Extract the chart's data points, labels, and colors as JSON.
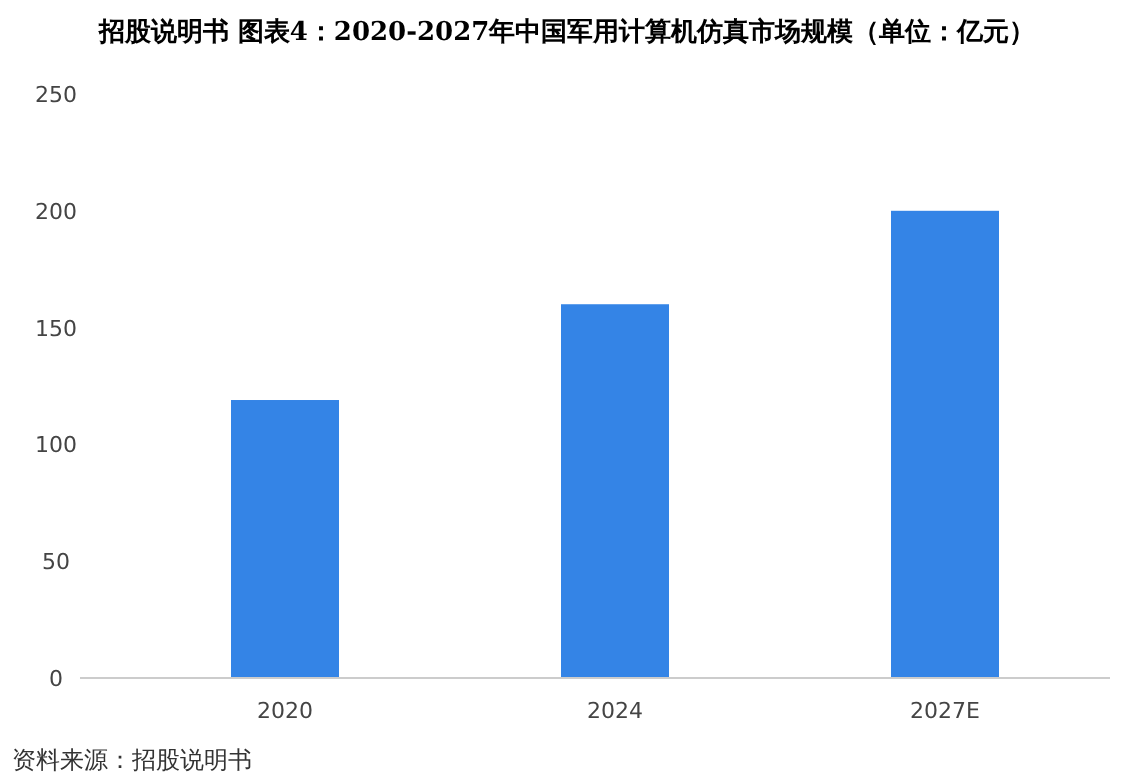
{
  "chart_data": {
    "type": "bar",
    "title": "招股说明书 图表4：2020-2027年中国军用计算机仿真市场规模（单位：亿元）",
    "categories": [
      "2020",
      "2024",
      "2027E"
    ],
    "values": [
      119,
      160,
      200
    ],
    "color": "#3484e6",
    "ylim": [
      0,
      250
    ],
    "yticks": [
      0,
      50,
      100,
      150,
      200,
      250
    ],
    "annotations": [
      "资料来源：招股说明书"
    ]
  }
}
